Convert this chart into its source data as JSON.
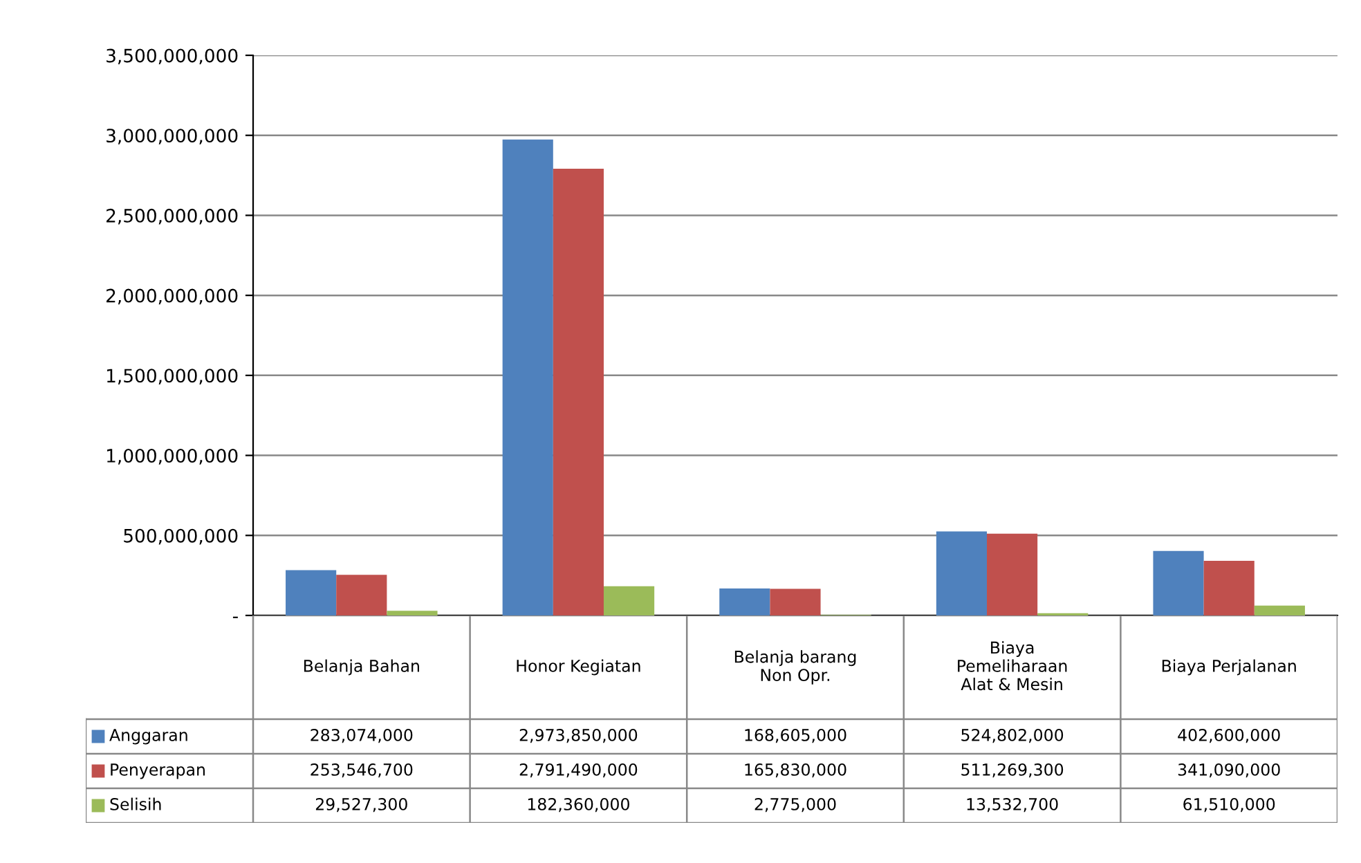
{
  "chart_data": {
    "type": "bar",
    "categories": [
      "Belanja Bahan",
      "Honor Kegiatan",
      "Belanja barang\nNon Opr.",
      "Biaya\nPemeliharaan\nAlat & Mesin",
      "Biaya Perjalanan"
    ],
    "series": [
      {
        "name": "Anggaran",
        "color": "#4f81bd",
        "values": [
          283074000,
          2973850000,
          168605000,
          524802000,
          402600000
        ],
        "value_labels": [
          "283,074,000",
          "2,973,850,000",
          "168,605,000",
          "524,802,000",
          "402,600,000"
        ]
      },
      {
        "name": "Penyerapan",
        "color": "#c0504d",
        "values": [
          253546700,
          2791490000,
          165830000,
          511269300,
          341090000
        ],
        "value_labels": [
          "253,546,700",
          "2,791,490,000",
          "165,830,000",
          "511,269,300",
          "341,090,000"
        ]
      },
      {
        "name": "Selisih",
        "color": "#9bbb59",
        "values": [
          29527300,
          182360000,
          2775000,
          13532700,
          61510000
        ],
        "value_labels": [
          "29,527,300",
          "182,360,000",
          "2,775,000",
          "13,532,700",
          "61,510,000"
        ]
      }
    ],
    "ylim": [
      0,
      3500000000
    ],
    "yticks": [
      {
        "value": 0,
        "label": "-"
      },
      {
        "value": 500000000,
        "label": "500,000,000"
      },
      {
        "value": 1000000000,
        "label": "1,000,000,000"
      },
      {
        "value": 1500000000,
        "label": "1,500,000,000"
      },
      {
        "value": 2000000000,
        "label": "2,000,000,000"
      },
      {
        "value": 2500000000,
        "label": "2,500,000,000"
      },
      {
        "value": 3000000000,
        "label": "3,000,000,000"
      },
      {
        "value": 3500000000,
        "label": "3,500,000,000"
      }
    ],
    "grid": "y",
    "legend": "bottom left"
  }
}
